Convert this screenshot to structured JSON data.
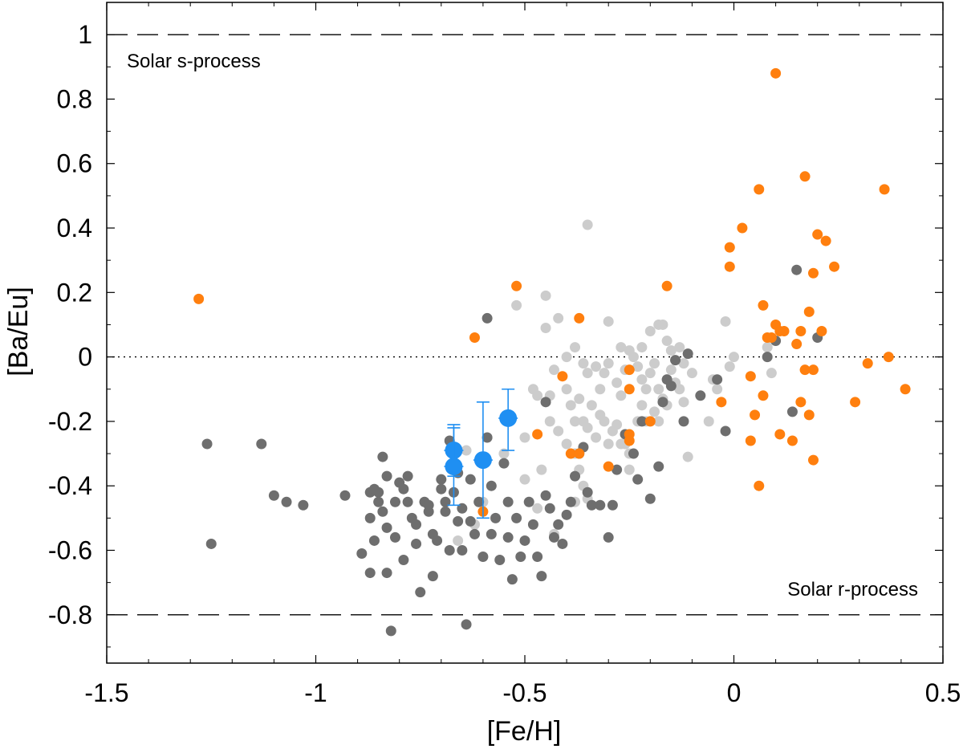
{
  "chart_data": {
    "type": "scatter",
    "xlabel": "[Fe/H]",
    "ylabel": "[Ba/Eu]",
    "xlim": [
      -1.5,
      0.5
    ],
    "ylim": [
      -0.95,
      1.1
    ],
    "x_ticks": [
      "-1.5",
      "-1",
      "-0.5",
      "0",
      "0.5"
    ],
    "y_ticks": [
      "-0.8",
      "-0.6",
      "-0.4",
      "-0.2",
      "0",
      "0.2",
      "0.4",
      "0.6",
      "0.8",
      "1"
    ],
    "x_tick_values": [
      -1.5,
      -1,
      -0.5,
      0,
      0.5
    ],
    "y_tick_values": [
      -0.8,
      -0.6,
      -0.4,
      -0.2,
      0,
      0.2,
      0.4,
      0.6,
      0.8,
      1
    ],
    "grid": false,
    "reference_lines": [
      {
        "y": 1.0,
        "style": "dashed",
        "label": "Solar s-process"
      },
      {
        "y": 0.0,
        "style": "dotted",
        "label": ""
      },
      {
        "y": -0.8,
        "style": "dashed",
        "label": "Solar r-process"
      }
    ],
    "annotations": [
      "Solar s-process",
      "Solar r-process"
    ],
    "colors": {
      "light_gray": "#cccccc",
      "dark_gray": "#6e6e6e",
      "orange": "#ff7f0e",
      "blue": "#1f8ff2"
    },
    "series": [
      {
        "color_key": "light_gray",
        "points": [
          [
            -0.35,
            0.41
          ],
          [
            -0.52,
            0.16
          ],
          [
            -0.45,
            0.19
          ],
          [
            -0.45,
            0.09
          ],
          [
            -0.42,
            0.12
          ],
          [
            -0.3,
            0.11
          ],
          [
            -0.27,
            0.03
          ],
          [
            -0.25,
            0.02
          ],
          [
            -0.22,
            0.03
          ],
          [
            -0.2,
            0.08
          ],
          [
            -0.18,
            0.1
          ],
          [
            -0.17,
            0.1
          ],
          [
            -0.16,
            0.05
          ],
          [
            -0.15,
            0.02
          ],
          [
            -0.13,
            0.03
          ],
          [
            -0.12,
            -0.02
          ],
          [
            -0.1,
            -0.05
          ],
          [
            -0.05,
            -0.07
          ],
          [
            -0.02,
            0.11
          ],
          [
            -0.01,
            -0.03
          ],
          [
            0.0,
            0.0
          ],
          [
            0.08,
            0.03
          ],
          [
            0.09,
            -0.05
          ],
          [
            -0.4,
            0.0
          ],
          [
            -0.38,
            0.03
          ],
          [
            -0.36,
            -0.02
          ],
          [
            -0.35,
            -0.05
          ],
          [
            -0.33,
            -0.03
          ],
          [
            -0.32,
            -0.1
          ],
          [
            -0.31,
            -0.05
          ],
          [
            -0.3,
            -0.02
          ],
          [
            -0.28,
            -0.08
          ],
          [
            -0.27,
            -0.12
          ],
          [
            -0.26,
            -0.04
          ],
          [
            -0.24,
            0.0
          ],
          [
            -0.23,
            -0.03
          ],
          [
            -0.22,
            -0.07
          ],
          [
            -0.21,
            -0.1
          ],
          [
            -0.2,
            -0.05
          ],
          [
            -0.19,
            -0.02
          ],
          [
            -0.18,
            -0.1
          ],
          [
            -0.17,
            -0.13
          ],
          [
            -0.16,
            -0.07
          ],
          [
            -0.15,
            -0.04
          ],
          [
            -0.14,
            -0.08
          ],
          [
            -0.13,
            -0.1
          ],
          [
            -0.12,
            -0.14
          ],
          [
            -0.11,
            -0.31
          ],
          [
            -0.43,
            -0.04
          ],
          [
            -0.44,
            -0.12
          ],
          [
            -0.4,
            -0.1
          ],
          [
            -0.39,
            -0.15
          ],
          [
            -0.38,
            -0.2
          ],
          [
            -0.37,
            -0.13
          ],
          [
            -0.36,
            -0.2
          ],
          [
            -0.35,
            -0.22
          ],
          [
            -0.34,
            -0.15
          ],
          [
            -0.33,
            -0.25
          ],
          [
            -0.32,
            -0.18
          ],
          [
            -0.31,
            -0.2
          ],
          [
            -0.3,
            -0.27
          ],
          [
            -0.29,
            -0.23
          ],
          [
            -0.28,
            -0.21
          ],
          [
            -0.26,
            -0.27
          ],
          [
            -0.25,
            -0.3
          ],
          [
            -0.23,
            -0.2
          ],
          [
            -0.22,
            -0.15
          ],
          [
            -0.21,
            -0.2
          ],
          [
            -0.19,
            -0.17
          ],
          [
            -0.18,
            -0.2
          ],
          [
            -0.16,
            -0.15
          ],
          [
            -0.5,
            -0.25
          ],
          [
            -0.48,
            -0.1
          ],
          [
            -0.47,
            -0.12
          ],
          [
            -0.46,
            -0.35
          ],
          [
            -0.44,
            -0.2
          ],
          [
            -0.42,
            -0.23
          ],
          [
            -0.4,
            -0.27
          ],
          [
            -0.38,
            -0.3
          ],
          [
            -0.37,
            -0.35
          ],
          [
            -0.36,
            -0.4
          ],
          [
            -0.35,
            -0.44
          ],
          [
            -0.64,
            -0.29
          ],
          [
            -0.6,
            -0.45
          ],
          [
            -0.55,
            -0.3
          ],
          [
            -0.5,
            -0.38
          ],
          [
            -0.47,
            -0.47
          ],
          [
            -0.43,
            -0.55
          ],
          [
            -0.38,
            -0.45
          ],
          [
            -0.66,
            -0.57
          ],
          [
            -0.62,
            -0.52
          ],
          [
            -0.27,
            -0.27
          ],
          [
            -0.25,
            -0.35
          ],
          [
            -0.06,
            -0.2
          ],
          [
            -0.04,
            -0.1
          ]
        ]
      },
      {
        "color_key": "dark_gray",
        "points": [
          [
            -1.26,
            -0.27
          ],
          [
            -1.25,
            -0.58
          ],
          [
            -1.13,
            -0.27
          ],
          [
            -1.1,
            -0.43
          ],
          [
            -1.07,
            -0.45
          ],
          [
            -1.03,
            -0.46
          ],
          [
            -0.93,
            -0.43
          ],
          [
            -0.89,
            -0.61
          ],
          [
            -0.87,
            -0.42
          ],
          [
            -0.87,
            -0.5
          ],
          [
            -0.87,
            -0.67
          ],
          [
            -0.86,
            -0.41
          ],
          [
            -0.86,
            -0.57
          ],
          [
            -0.85,
            -0.42
          ],
          [
            -0.85,
            -0.45
          ],
          [
            -0.84,
            -0.48
          ],
          [
            -0.84,
            -0.31
          ],
          [
            -0.83,
            -0.53
          ],
          [
            -0.83,
            -0.67
          ],
          [
            -0.83,
            -0.37
          ],
          [
            -0.82,
            -0.85
          ],
          [
            -0.81,
            -0.45
          ],
          [
            -0.81,
            -0.56
          ],
          [
            -0.8,
            -0.39
          ],
          [
            -0.79,
            -0.41
          ],
          [
            -0.79,
            -0.63
          ],
          [
            -0.78,
            -0.45
          ],
          [
            -0.78,
            -0.37
          ],
          [
            -0.77,
            -0.5
          ],
          [
            -0.76,
            -0.58
          ],
          [
            -0.76,
            -0.52
          ],
          [
            -0.75,
            -0.73
          ],
          [
            -0.74,
            -0.45
          ],
          [
            -0.73,
            -0.46
          ],
          [
            -0.73,
            -0.48
          ],
          [
            -0.72,
            -0.55
          ],
          [
            -0.72,
            -0.68
          ],
          [
            -0.71,
            -0.57
          ],
          [
            -0.7,
            -0.38
          ],
          [
            -0.7,
            -0.41
          ],
          [
            -0.69,
            -0.45
          ],
          [
            -0.69,
            -0.48
          ],
          [
            -0.68,
            -0.6
          ],
          [
            -0.68,
            -0.26
          ],
          [
            -0.67,
            -0.42
          ],
          [
            -0.67,
            -0.33
          ],
          [
            -0.66,
            -0.36
          ],
          [
            -0.66,
            -0.51
          ],
          [
            -0.65,
            -0.6
          ],
          [
            -0.65,
            -0.47
          ],
          [
            -0.64,
            -0.83
          ],
          [
            -0.63,
            -0.38
          ],
          [
            -0.63,
            -0.51
          ],
          [
            -0.62,
            -0.55
          ],
          [
            -0.61,
            -0.45
          ],
          [
            -0.6,
            -0.62
          ],
          [
            -0.6,
            -0.32
          ],
          [
            -0.59,
            -0.25
          ],
          [
            -0.58,
            -0.4
          ],
          [
            -0.58,
            -0.55
          ],
          [
            -0.57,
            -0.5
          ],
          [
            -0.56,
            -0.63
          ],
          [
            -0.55,
            -0.33
          ],
          [
            -0.54,
            -0.45
          ],
          [
            -0.54,
            -0.56
          ],
          [
            -0.53,
            -0.69
          ],
          [
            -0.52,
            -0.5
          ],
          [
            -0.51,
            -0.62
          ],
          [
            -0.5,
            -0.57
          ],
          [
            -0.49,
            -0.45
          ],
          [
            -0.48,
            -0.52
          ],
          [
            -0.47,
            -0.62
          ],
          [
            -0.46,
            -0.68
          ],
          [
            -0.45,
            -0.43
          ],
          [
            -0.44,
            -0.47
          ],
          [
            -0.43,
            -0.56
          ],
          [
            -0.42,
            -0.52
          ],
          [
            -0.41,
            -0.58
          ],
          [
            -0.4,
            -0.49
          ],
          [
            -0.39,
            -0.45
          ],
          [
            -0.38,
            -0.37
          ],
          [
            -0.37,
            -0.3
          ],
          [
            -0.36,
            -0.28
          ],
          [
            -0.35,
            -0.42
          ],
          [
            -0.34,
            -0.46
          ],
          [
            -0.32,
            -0.46
          ],
          [
            -0.3,
            -0.56
          ],
          [
            -0.29,
            -0.46
          ],
          [
            -0.28,
            -0.35
          ],
          [
            -0.26,
            -0.24
          ],
          [
            -0.24,
            -0.3
          ],
          [
            -0.23,
            -0.38
          ],
          [
            -0.22,
            -0.2
          ],
          [
            -0.2,
            -0.44
          ],
          [
            -0.18,
            -0.34
          ],
          [
            -0.17,
            -0.14
          ],
          [
            -0.16,
            -0.07
          ],
          [
            -0.15,
            -0.09
          ],
          [
            -0.14,
            -0.01
          ],
          [
            -0.12,
            -0.2
          ],
          [
            -0.11,
            0.01
          ],
          [
            -0.59,
            0.12
          ],
          [
            -0.45,
            -0.14
          ],
          [
            -0.08,
            -0.12
          ],
          [
            -0.04,
            -0.07
          ],
          [
            -0.02,
            -0.23
          ],
          [
            0.08,
            0.0
          ],
          [
            0.1,
            0.05
          ],
          [
            0.15,
            0.27
          ],
          [
            0.2,
            0.06
          ],
          [
            0.14,
            -0.17
          ]
        ]
      },
      {
        "color_key": "orange",
        "points": [
          [
            -1.28,
            0.18
          ],
          [
            -0.62,
            0.06
          ],
          [
            -0.52,
            0.22
          ],
          [
            -0.37,
            0.12
          ],
          [
            -0.16,
            0.22
          ],
          [
            -0.41,
            -0.06
          ],
          [
            -0.47,
            -0.24
          ],
          [
            -0.39,
            -0.3
          ],
          [
            -0.37,
            -0.3
          ],
          [
            -0.3,
            -0.34
          ],
          [
            -0.25,
            -0.04
          ],
          [
            -0.25,
            -0.1
          ],
          [
            -0.25,
            -0.24
          ],
          [
            -0.25,
            -0.26
          ],
          [
            -0.2,
            -0.2
          ],
          [
            -0.6,
            -0.48
          ],
          [
            -0.03,
            -0.14
          ],
          [
            0.04,
            -0.06
          ],
          [
            0.04,
            -0.26
          ],
          [
            0.05,
            -0.18
          ],
          [
            0.06,
            -0.4
          ],
          [
            0.07,
            -0.12
          ],
          [
            0.07,
            0.16
          ],
          [
            0.08,
            0.06
          ],
          [
            0.09,
            0.06
          ],
          [
            0.1,
            0.88
          ],
          [
            0.1,
            0.1
          ],
          [
            0.11,
            0.08
          ],
          [
            0.11,
            -0.24
          ],
          [
            0.12,
            0.08
          ],
          [
            0.14,
            -0.26
          ],
          [
            0.15,
            0.04
          ],
          [
            0.16,
            0.08
          ],
          [
            0.16,
            -0.14
          ],
          [
            0.17,
            -0.04
          ],
          [
            0.18,
            0.14
          ],
          [
            0.18,
            -0.18
          ],
          [
            0.19,
            0.26
          ],
          [
            0.19,
            -0.04
          ],
          [
            0.19,
            -0.32
          ],
          [
            0.2,
            0.38
          ],
          [
            0.21,
            0.08
          ],
          [
            0.22,
            0.36
          ],
          [
            0.24,
            0.28
          ],
          [
            0.29,
            -0.14
          ],
          [
            0.32,
            -0.02
          ],
          [
            0.36,
            0.52
          ],
          [
            0.37,
            0.0
          ],
          [
            0.41,
            -0.1
          ],
          [
            -0.01,
            0.34
          ],
          [
            -0.01,
            0.28
          ],
          [
            0.02,
            0.4
          ],
          [
            0.06,
            0.52
          ],
          [
            0.17,
            0.56
          ]
        ]
      },
      {
        "color_key": "blue",
        "points": [
          [
            -0.67,
            -0.29
          ],
          [
            -0.67,
            -0.34
          ],
          [
            -0.6,
            -0.32
          ],
          [
            -0.54,
            -0.19
          ]
        ],
        "y_errors": [
          [
            -0.37,
            -0.21
          ],
          [
            -0.46,
            -0.22
          ],
          [
            -0.5,
            -0.14
          ],
          [
            -0.29,
            -0.1
          ]
        ]
      }
    ]
  }
}
